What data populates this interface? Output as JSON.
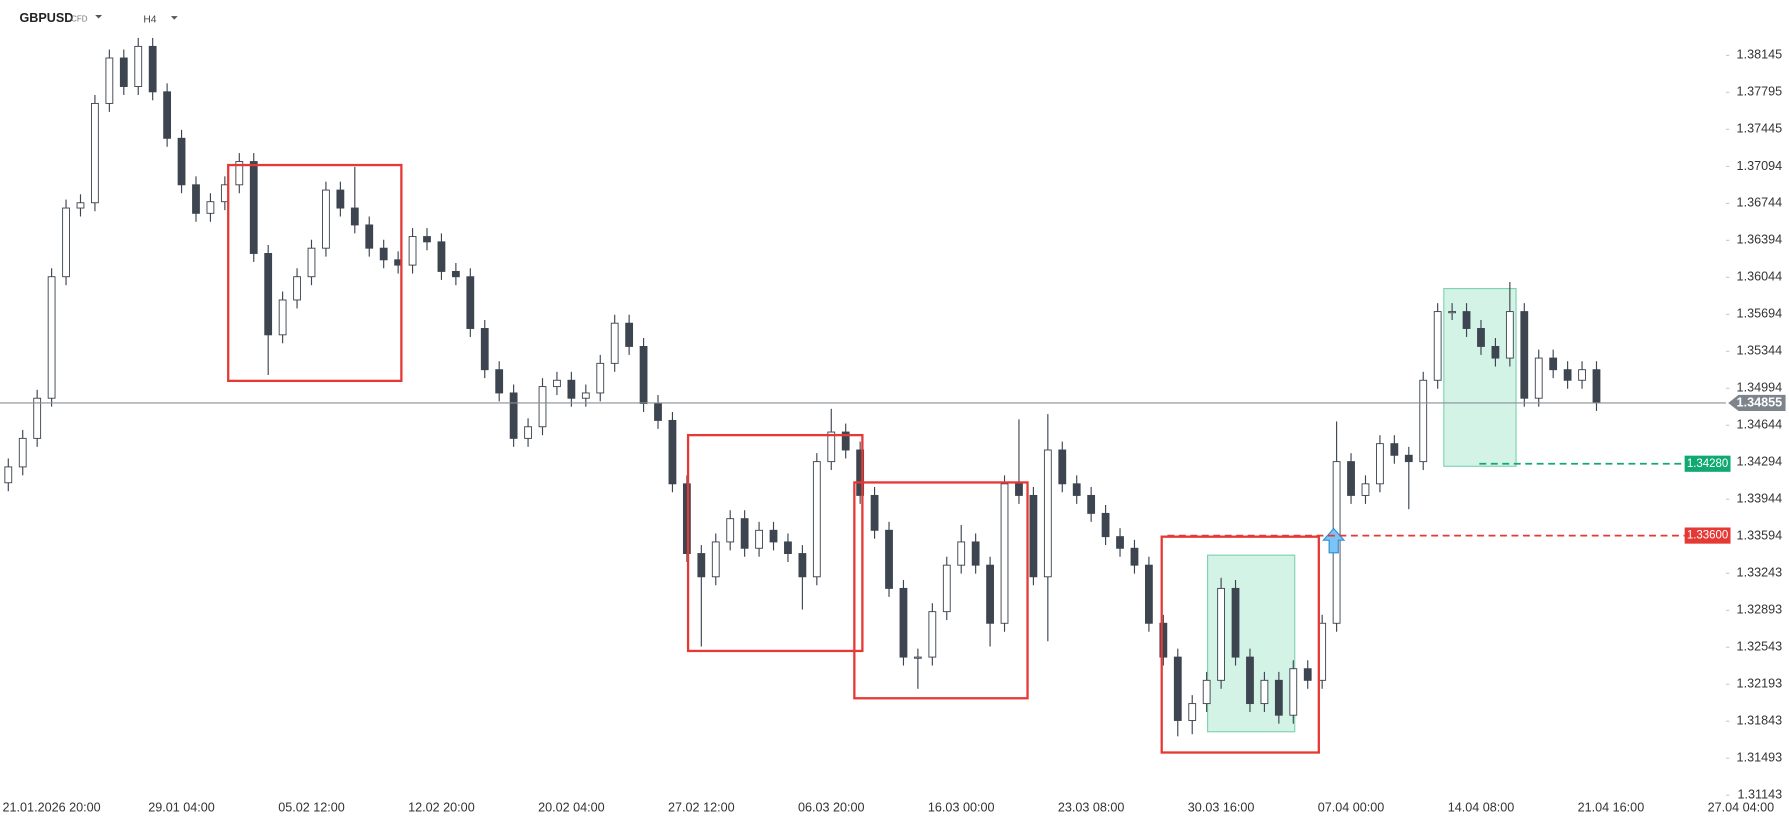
{
  "chart_data": {
    "type": "candlestick",
    "symbol": "GBPUSD",
    "instrument_type": "CFD",
    "timeframe": "H4",
    "categories": [
      null,
      null,
      null,
      "21.01.2026 20:00",
      null,
      null,
      null,
      null,
      null,
      null,
      null,
      null,
      "29.01 04:00",
      null,
      null,
      null,
      null,
      null,
      null,
      null,
      null,
      "05.02 12:00",
      null,
      null,
      null,
      null,
      null,
      null,
      null,
      null,
      "12.02 20:00",
      null,
      null,
      null,
      null,
      null,
      null,
      null,
      null,
      "20.02 04:00",
      null,
      null,
      null,
      null,
      null,
      null,
      null,
      null,
      "27.02 12:00",
      null,
      null,
      null,
      null,
      null,
      null,
      null,
      null,
      "06.03 20:00",
      null,
      null,
      null,
      null,
      null,
      null,
      null,
      null,
      "16.03 00:00",
      null,
      null,
      null,
      null,
      null,
      null,
      null,
      null,
      "23.03 08:00",
      null,
      null,
      null,
      null,
      null,
      null,
      null,
      null,
      "30.03 16:00",
      null,
      null,
      null,
      null,
      null,
      null,
      null,
      null,
      "07.04 00:00",
      null,
      null,
      null,
      null,
      null,
      null,
      null,
      null,
      "14.04 08:00",
      null,
      null,
      null,
      null,
      null,
      null,
      null,
      null,
      "21.04 16:00",
      null,
      null,
      null,
      null,
      null,
      null,
      null,
      null,
      "27.04 04:00"
    ],
    "open": [
      1.341,
      1.3425,
      1.3452,
      1.349,
      1.3605,
      1.367,
      1.3675,
      1.3769,
      1.3812,
      1.3785,
      1.3823,
      1.378,
      1.3736,
      1.3692,
      1.3665,
      1.3676,
      1.3692,
      1.3714,
      1.3627,
      1.355,
      1.3583,
      1.3605,
      1.3632,
      1.3687,
      1.367,
      1.3654,
      1.3632,
      1.3621,
      1.3616,
      1.3643,
      1.3638,
      1.361,
      1.3605,
      1.3556,
      1.3517,
      1.3495,
      1.3452,
      1.3463,
      1.3501,
      1.3507,
      1.349,
      1.3495,
      1.3523,
      1.3561,
      1.3539,
      1.3485,
      1.3469,
      1.3409,
      1.3343,
      1.3321,
      1.3354,
      1.3376,
      1.3348,
      1.3365,
      1.3354,
      1.3343,
      1.3321,
      1.343,
      1.3458,
      1.3441,
      1.3398,
      1.3365,
      1.331,
      1.3245,
      1.3245,
      1.3288,
      1.3332,
      1.3354,
      1.3332,
      1.3277,
      1.3409,
      1.3398,
      1.3321,
      1.3441,
      1.3409,
      1.3398,
      1.3381,
      1.3359,
      1.3348,
      1.3332,
      1.3277,
      1.3245,
      1.3185,
      1.3201,
      1.3223,
      1.331,
      1.3245,
      1.3201,
      1.3223,
      1.319,
      1.3234,
      1.3223,
      1.3277,
      1.343,
      1.3398,
      1.3409,
      1.3447,
      1.3436,
      1.343,
      1.3507,
      1.3572,
      1.3572,
      1.3556,
      1.3539,
      1.3528,
      1.3572,
      1.349,
      1.3528,
      1.3517,
      1.3507,
      1.3517,
      null,
      null,
      null,
      null,
      null,
      null,
      null,
      null,
      null,
      null
    ],
    "high": [
      1.3433,
      1.346,
      1.3498,
      1.3613,
      1.3678,
      1.3683,
      1.3777,
      1.382,
      1.382,
      1.3831,
      1.3831,
      1.3788,
      1.3744,
      1.37,
      1.3684,
      1.37,
      1.3722,
      1.3722,
      1.3635,
      1.3591,
      1.3613,
      1.364,
      1.3695,
      1.3695,
      1.3709,
      1.3662,
      1.364,
      1.3629,
      1.3651,
      1.3651,
      1.3646,
      1.3618,
      1.3613,
      1.3564,
      1.3525,
      1.3503,
      1.3471,
      1.3509,
      1.3515,
      1.3515,
      1.3503,
      1.3531,
      1.3569,
      1.3569,
      1.3547,
      1.3493,
      1.3477,
      1.3417,
      1.3351,
      1.3362,
      1.3384,
      1.3384,
      1.3373,
      1.3373,
      1.3362,
      1.3351,
      1.3438,
      1.348,
      1.3466,
      1.3449,
      1.3406,
      1.3373,
      1.3318,
      1.3253,
      1.3296,
      1.334,
      1.337,
      1.3362,
      1.334,
      1.3417,
      1.347,
      1.3406,
      1.3475,
      1.3449,
      1.3417,
      1.3406,
      1.3389,
      1.3367,
      1.3356,
      1.334,
      1.3285,
      1.3253,
      1.3209,
      1.3231,
      1.332,
      1.3318,
      1.3253,
      1.3231,
      1.3231,
      1.3242,
      1.3242,
      1.3285,
      1.3468,
      1.3438,
      1.3417,
      1.3455,
      1.3455,
      1.3444,
      1.3515,
      1.358,
      1.358,
      1.358,
      1.3564,
      1.3547,
      1.36,
      1.358,
      1.3536,
      1.3536,
      1.3525,
      1.3525,
      1.3525,
      null,
      null,
      null,
      null,
      null,
      null,
      null,
      null,
      null,
      null
    ],
    "low": [
      1.3402,
      1.3417,
      1.3444,
      1.3482,
      1.3597,
      1.3662,
      1.3667,
      1.3761,
      1.3777,
      1.3777,
      1.3772,
      1.3728,
      1.3684,
      1.3657,
      1.3657,
      1.3668,
      1.3684,
      1.3619,
      1.3512,
      1.3542,
      1.3575,
      1.3597,
      1.3624,
      1.3662,
      1.3646,
      1.3624,
      1.3613,
      1.3608,
      1.3608,
      1.363,
      1.3602,
      1.3597,
      1.3548,
      1.3509,
      1.3487,
      1.3444,
      1.3444,
      1.3455,
      1.3493,
      1.3482,
      1.3482,
      1.3487,
      1.3515,
      1.3531,
      1.3477,
      1.3461,
      1.3401,
      1.3335,
      1.3255,
      1.3313,
      1.3346,
      1.334,
      1.334,
      1.3346,
      1.3335,
      1.329,
      1.3313,
      1.3422,
      1.3433,
      1.339,
      1.3357,
      1.3302,
      1.3237,
      1.3215,
      1.3237,
      1.328,
      1.3324,
      1.3324,
      1.3255,
      1.3269,
      1.339,
      1.3313,
      1.326,
      1.3401,
      1.339,
      1.3373,
      1.3351,
      1.334,
      1.3324,
      1.3269,
      1.3237,
      1.317,
      1.3172,
      1.3193,
      1.3215,
      1.3237,
      1.3193,
      1.3193,
      1.3182,
      1.3182,
      1.3215,
      1.3215,
      1.3269,
      1.339,
      1.339,
      1.3401,
      1.3428,
      1.3385,
      1.3422,
      1.3499,
      1.3564,
      1.3548,
      1.3531,
      1.352,
      1.352,
      1.3482,
      1.3482,
      1.3509,
      1.3499,
      1.3499,
      1.3478,
      null,
      null,
      null,
      null,
      null,
      null,
      null,
      null,
      null,
      null
    ],
    "close": [
      1.3425,
      1.3452,
      1.349,
      1.3605,
      1.367,
      1.3675,
      1.3769,
      1.3812,
      1.3785,
      1.3823,
      1.378,
      1.3736,
      1.3692,
      1.3665,
      1.3676,
      1.3692,
      1.3714,
      1.3627,
      1.355,
      1.3583,
      1.3605,
      1.3632,
      1.3687,
      1.367,
      1.3654,
      1.3632,
      1.3621,
      1.3616,
      1.3643,
      1.3638,
      1.361,
      1.3605,
      1.3556,
      1.3517,
      1.3495,
      1.3452,
      1.3463,
      1.3501,
      1.3507,
      1.349,
      1.3495,
      1.3523,
      1.3561,
      1.3539,
      1.3485,
      1.3469,
      1.3409,
      1.3343,
      1.3321,
      1.3354,
      1.3376,
      1.3348,
      1.3365,
      1.3354,
      1.3343,
      1.3321,
      1.343,
      1.3458,
      1.3441,
      1.3398,
      1.3365,
      1.331,
      1.3245,
      1.3245,
      1.3288,
      1.3332,
      1.3354,
      1.3332,
      1.3277,
      1.3409,
      1.3398,
      1.3321,
      1.3441,
      1.3409,
      1.3398,
      1.3381,
      1.3359,
      1.3348,
      1.3332,
      1.3277,
      1.3245,
      1.3185,
      1.3201,
      1.3223,
      1.331,
      1.3245,
      1.3201,
      1.3223,
      1.319,
      1.3234,
      1.3223,
      1.3277,
      1.343,
      1.3398,
      1.3409,
      1.3447,
      1.3436,
      1.343,
      1.3507,
      1.3572,
      1.3572,
      1.3556,
      1.3539,
      1.3528,
      1.3572,
      1.349,
      1.3528,
      1.3517,
      1.3507,
      1.3517,
      1.3486,
      null,
      null,
      null,
      null,
      null,
      null,
      null,
      null,
      null,
      null
    ],
    "up_color": "#ffffff",
    "down_color": "#3d4550",
    "wick_color": "#3d4550",
    "ylim": [
      1.30946,
      1.38669
    ],
    "yticks": [
      1.38145,
      1.37795,
      1.37445,
      1.37094,
      1.36744,
      1.36394,
      1.36044,
      1.35694,
      1.35344,
      1.34994,
      1.34644,
      1.34294,
      1.33944,
      1.33594,
      1.33243,
      1.32893,
      1.32543,
      1.32193,
      1.31843,
      1.31493,
      1.31143
    ],
    "last_price": {
      "value": 1.34855,
      "label": "1.34855"
    },
    "price_levels": [
      {
        "value": 1.3428,
        "label": "1.34280",
        "color": "#10a971"
      },
      {
        "value": 1.336,
        "label": "1.33600",
        "color": "#e53935"
      }
    ]
  }
}
